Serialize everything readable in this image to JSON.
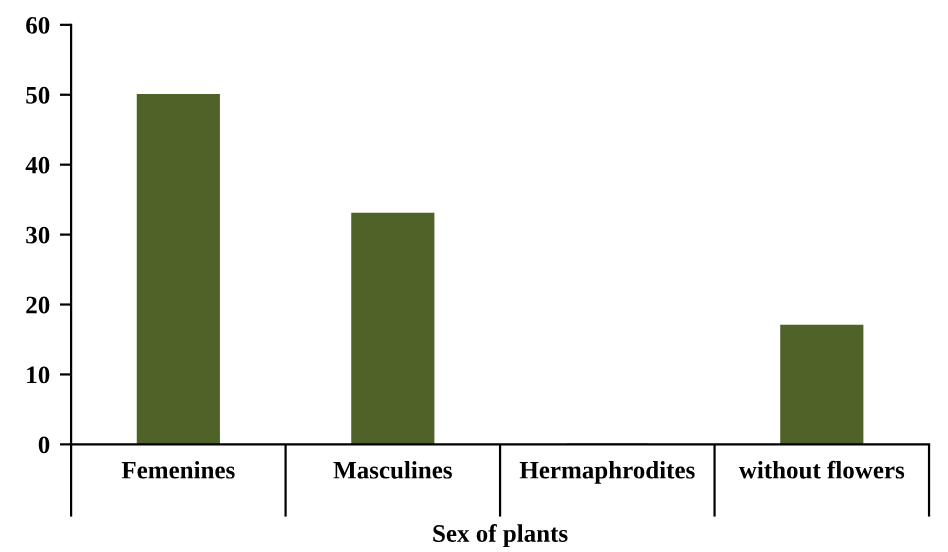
{
  "chart_data": {
    "type": "bar",
    "xlabel": "Sex of plants",
    "categories": [
      "Femenines",
      "Masculines",
      "Hermaphrodites",
      "without flowers"
    ],
    "values": [
      50,
      33,
      0,
      17
    ],
    "color": "#4f6228",
    "ylim": [
      0,
      60
    ],
    "yticks": [
      0,
      10,
      20,
      30,
      40,
      50,
      60
    ],
    "grid": false
  }
}
